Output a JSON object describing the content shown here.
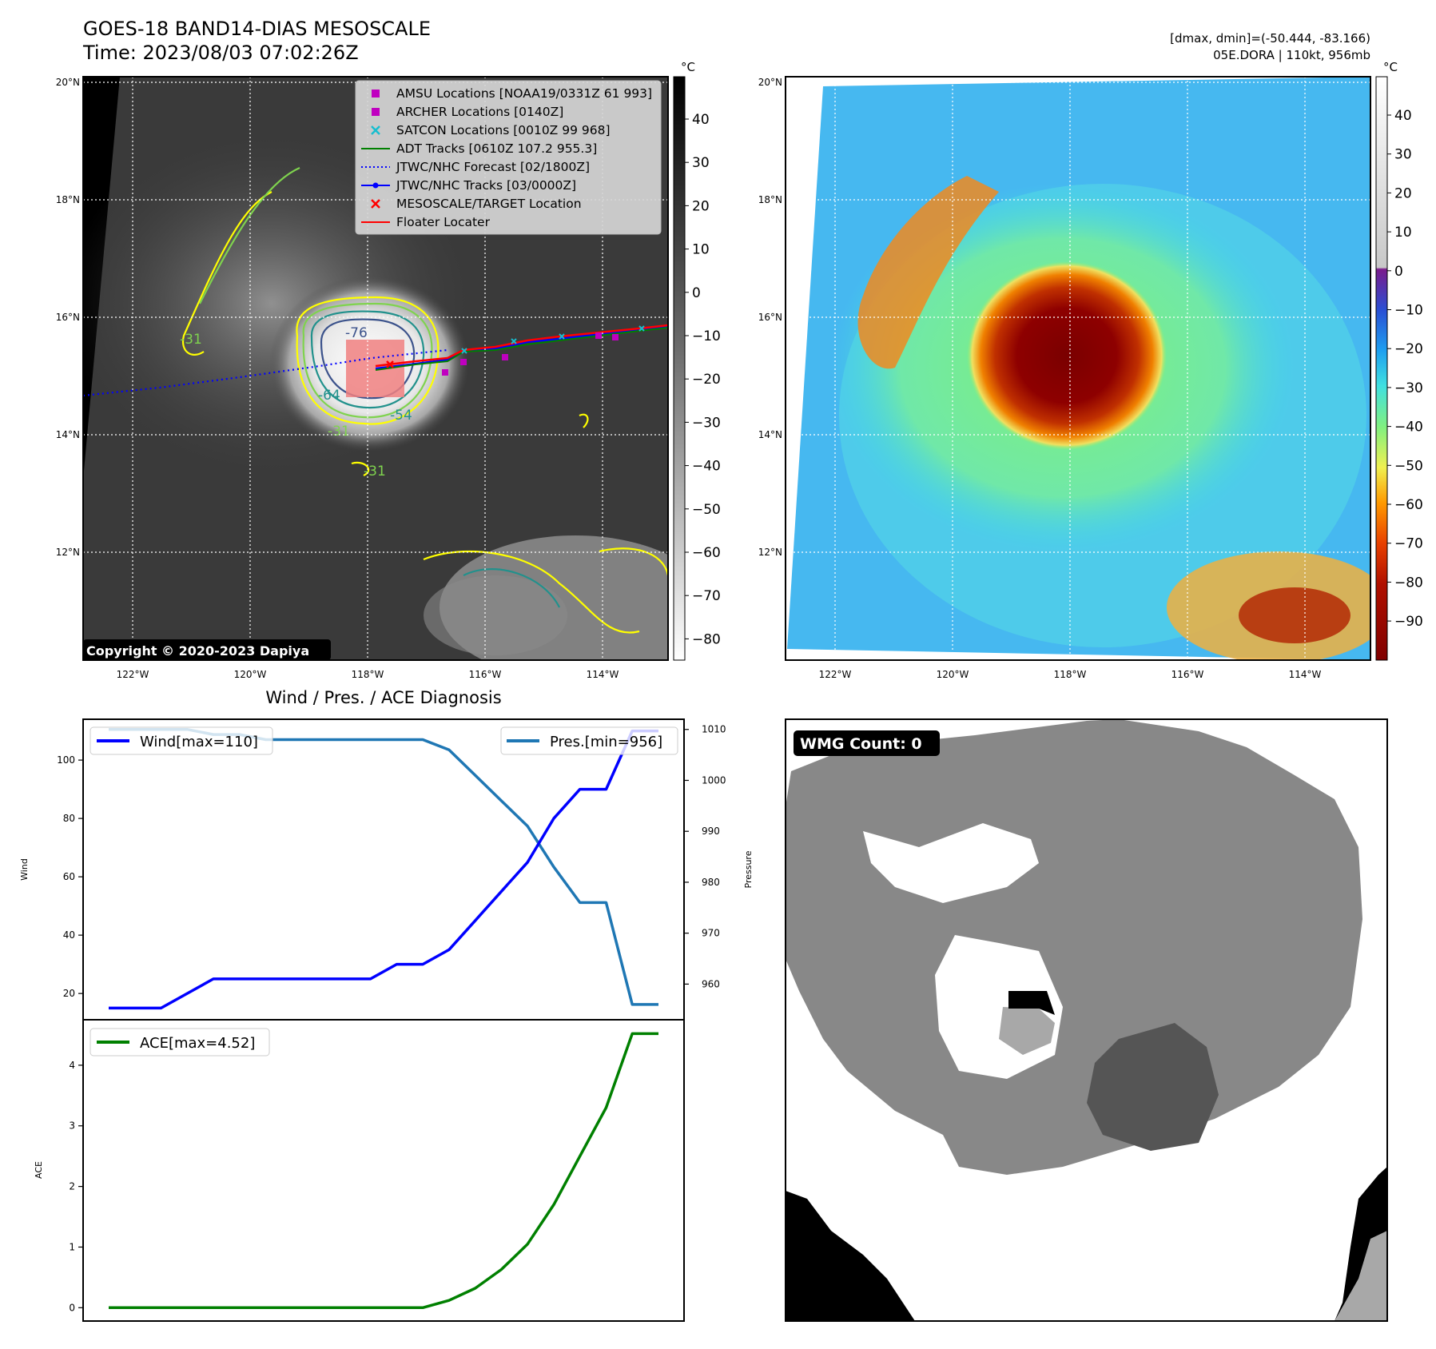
{
  "header": {
    "title_line1": "GOES-18 BAND14-DIAS MESOSCALE",
    "title_line2": "Time: 2023/08/03 07:02:26Z",
    "right_line1": "[dmax, dmin]=(-50.444, -83.166)",
    "right_line2": "05E.DORA | 110kt, 956mb"
  },
  "colors": {
    "wind": "#0000ff",
    "pressure": "#1f77b4",
    "ace": "#008000",
    "amsu": "#c000c0",
    "satcon": "#17becf",
    "adt": "#008000",
    "floater": "#ff0000",
    "contour_yellow": "#ffff00",
    "contour_green": "#7fd34e",
    "contour_teal": "#21918c",
    "contour_navy": "#3b528b"
  },
  "map_axes": {
    "lon_ticks": [
      "122°W",
      "120°W",
      "118°W",
      "116°W",
      "114°W"
    ],
    "lat_ticks": [
      "20°N",
      "18°N",
      "16°N",
      "14°N",
      "12°N"
    ]
  },
  "ir_map": {
    "copyright": "Copyright © 2020-2023 Dapiya",
    "colorbar_unit": "°C",
    "colorbar_ticks": [
      "40",
      "30",
      "20",
      "10",
      "0",
      "−10",
      "−20",
      "−30",
      "−40",
      "−50",
      "−60",
      "−70",
      "−80"
    ],
    "contour_labels": [
      "-76",
      "-64",
      "-54",
      "-31",
      "-31",
      "-31"
    ],
    "legend": [
      {
        "label": "AMSU Locations [NOAA19/0331Z 61 993]",
        "marker": "square",
        "color": "#c000c0"
      },
      {
        "label": "ARCHER Locations [0140Z]",
        "marker": "square",
        "color": "#c000c0"
      },
      {
        "label": "SATCON Locations [0010Z 99 968]",
        "marker": "x",
        "color": "#17becf"
      },
      {
        "label": "ADT Tracks [0610Z 107.2 955.3]",
        "marker": "line",
        "color": "#008000"
      },
      {
        "label": "JTWC/NHC Forecast [02/1800Z]",
        "marker": "dotted",
        "color": "#0000ff"
      },
      {
        "label": "JTWC/NHC Tracks [03/0000Z]",
        "marker": "line-dot",
        "color": "#0000ff"
      },
      {
        "label": "MESOSCALE/TARGET Location",
        "marker": "x",
        "color": "#ff0000"
      },
      {
        "label": "Floater Locater",
        "marker": "line",
        "color": "#ff0000"
      }
    ]
  },
  "color_map": {
    "colorbar_unit": "°C",
    "colorbar_ticks": [
      "40",
      "30",
      "20",
      "10",
      "0",
      "−10",
      "−20",
      "−30",
      "−40",
      "−50",
      "−60",
      "−70",
      "−80",
      "−90"
    ]
  },
  "wmg": {
    "badge": "WMG Count: 0"
  },
  "chart_data": [
    {
      "type": "line",
      "title": "Wind / Pres. / ACE Diagnosis",
      "ylabel": "Wind",
      "ylabel_right": "Pressure",
      "x": [
        0,
        1,
        2,
        3,
        4,
        5,
        6,
        7,
        8,
        9,
        10,
        11,
        12,
        13,
        14,
        15,
        16,
        17,
        18,
        19,
        20,
        21
      ],
      "ylim": [
        11,
        114
      ],
      "ylim_right": [
        953,
        1012
      ],
      "yticks": [
        20,
        40,
        60,
        80,
        100
      ],
      "yticks_right": [
        960,
        970,
        980,
        990,
        1000,
        1010
      ],
      "series": [
        {
          "name": "Wind[max=110]",
          "axis": "left",
          "color": "#0000ff",
          "values": [
            15,
            15,
            15,
            20,
            25,
            25,
            25,
            25,
            25,
            25,
            25,
            30,
            30,
            35,
            45,
            55,
            65,
            80,
            90,
            90,
            110,
            110
          ]
        },
        {
          "name": "Pres.[min=956]",
          "axis": "right",
          "color": "#1f77b4",
          "values": [
            1010,
            1010,
            1010,
            1010,
            1009,
            1009,
            1008,
            1008,
            1008,
            1008,
            1008,
            1008,
            1008,
            1006,
            1001,
            996,
            991,
            983,
            976,
            976,
            956,
            956
          ]
        }
      ]
    },
    {
      "type": "line",
      "ylabel": "ACE",
      "x": [
        0,
        1,
        2,
        3,
        4,
        5,
        6,
        7,
        8,
        9,
        10,
        11,
        12,
        13,
        14,
        15,
        16,
        17,
        18,
        19,
        20,
        21
      ],
      "ylim": [
        -0.22,
        4.75
      ],
      "yticks": [
        0,
        1,
        2,
        3,
        4
      ],
      "series": [
        {
          "name": "ACE[max=4.52]",
          "color": "#008000",
          "values": [
            0,
            0,
            0,
            0,
            0,
            0,
            0,
            0,
            0,
            0,
            0,
            0,
            0,
            0.12,
            0.32,
            0.63,
            1.05,
            1.7,
            2.5,
            3.3,
            4.52,
            4.52
          ]
        }
      ]
    }
  ]
}
